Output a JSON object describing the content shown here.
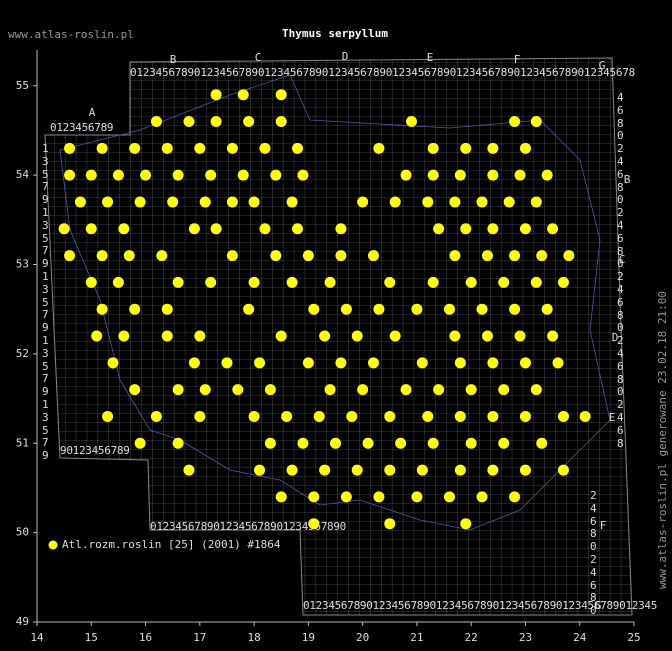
{
  "chart_data": {
    "type": "scatter",
    "title": "Thymus serpyllum",
    "source": "www.atlas-roslin.pl",
    "footer": "www.atlas-roslin.pl generowane 23.02.18 21:00",
    "xlim": [
      14,
      25
    ],
    "ylim": [
      49,
      55.4
    ],
    "xticks": [
      14,
      15,
      16,
      17,
      18,
      19,
      20,
      21,
      22,
      23,
      24,
      25
    ],
    "yticks": [
      49,
      50,
      51,
      52,
      53,
      54,
      55
    ],
    "series": [
      {
        "name": "Atl.rozm.roslin [25] (2001) #1864",
        "color": "#ffff00",
        "x": [
          17.3,
          17.8,
          18.5,
          16.2,
          16.8,
          17.3,
          17.9,
          18.5,
          20.9,
          22.8,
          23.2,
          14.6,
          15.2,
          15.8,
          16.4,
          17.0,
          17.6,
          18.2,
          18.8,
          20.3,
          21.3,
          21.9,
          22.4,
          23.0,
          14.6,
          15.0,
          15.5,
          16.0,
          16.6,
          17.2,
          17.8,
          18.4,
          18.9,
          20.8,
          21.3,
          21.8,
          22.4,
          22.9,
          23.4,
          14.8,
          15.3,
          15.9,
          16.5,
          17.1,
          17.6,
          18.0,
          18.7,
          20.0,
          20.6,
          21.2,
          21.7,
          22.2,
          22.7,
          23.2,
          14.5,
          15.0,
          15.6,
          16.9,
          17.3,
          18.2,
          18.8,
          19.6,
          21.4,
          21.9,
          22.4,
          23.0,
          23.5,
          14.6,
          15.2,
          15.7,
          16.3,
          17.6,
          18.4,
          19.0,
          19.6,
          20.2,
          21.7,
          22.3,
          22.8,
          23.3,
          23.8,
          15.0,
          15.5,
          16.6,
          17.2,
          18.0,
          18.7,
          19.4,
          20.5,
          21.3,
          22.0,
          22.6,
          23.2,
          23.7,
          15.2,
          15.8,
          16.4,
          17.9,
          19.1,
          19.7,
          20.3,
          21.0,
          21.6,
          22.2,
          22.8,
          23.4,
          15.1,
          15.6,
          16.4,
          17.0,
          18.5,
          19.3,
          19.9,
          20.6,
          21.7,
          22.3,
          22.9,
          23.5,
          15.4,
          16.9,
          17.5,
          18.1,
          19.0,
          19.6,
          20.2,
          21.1,
          21.8,
          22.4,
          23.0,
          23.6,
          15.8,
          16.6,
          17.1,
          17.7,
          18.3,
          19.4,
          20.0,
          20.8,
          21.4,
          22.0,
          22.6,
          23.2,
          15.3,
          16.2,
          17.0,
          18.0,
          18.6,
          19.2,
          19.8,
          20.5,
          21.2,
          21.8,
          22.4,
          23.0,
          23.7,
          24.1,
          15.9,
          16.6,
          18.3,
          18.9,
          19.5,
          20.1,
          20.7,
          21.3,
          22.0,
          22.6,
          23.3,
          16.8,
          18.1,
          18.7,
          19.3,
          19.9,
          20.5,
          21.1,
          21.8,
          22.4,
          23.0,
          23.7,
          18.5,
          19.1,
          19.7,
          20.3,
          21.0,
          21.6,
          22.2,
          22.8,
          19.1,
          20.5,
          21.9
        ],
        "values": [
          54.9,
          54.9,
          54.9,
          54.6,
          54.6,
          54.6,
          54.6,
          54.6,
          54.6,
          54.6,
          54.6,
          54.3,
          54.3,
          54.3,
          54.3,
          54.3,
          54.3,
          54.3,
          54.3,
          54.3,
          54.3,
          54.3,
          54.3,
          54.3,
          54.0,
          54.0,
          54.0,
          54.0,
          54.0,
          54.0,
          54.0,
          54.0,
          54.0,
          54.0,
          54.0,
          54.0,
          54.0,
          54.0,
          54.0,
          53.7,
          53.7,
          53.7,
          53.7,
          53.7,
          53.7,
          53.7,
          53.7,
          53.7,
          53.7,
          53.7,
          53.7,
          53.7,
          53.7,
          53.7,
          53.4,
          53.4,
          53.4,
          53.4,
          53.4,
          53.4,
          53.4,
          53.4,
          53.4,
          53.4,
          53.4,
          53.4,
          53.4,
          53.1,
          53.1,
          53.1,
          53.1,
          53.1,
          53.1,
          53.1,
          53.1,
          53.1,
          53.1,
          53.1,
          53.1,
          53.1,
          53.1,
          52.8,
          52.8,
          52.8,
          52.8,
          52.8,
          52.8,
          52.8,
          52.8,
          52.8,
          52.8,
          52.8,
          52.8,
          52.8,
          52.5,
          52.5,
          52.5,
          52.5,
          52.5,
          52.5,
          52.5,
          52.5,
          52.5,
          52.5,
          52.5,
          52.5,
          52.2,
          52.2,
          52.2,
          52.2,
          52.2,
          52.2,
          52.2,
          52.2,
          52.2,
          52.2,
          52.2,
          52.2,
          51.9,
          51.9,
          51.9,
          51.9,
          51.9,
          51.9,
          51.9,
          51.9,
          51.9,
          51.9,
          51.9,
          51.9,
          51.6,
          51.6,
          51.6,
          51.6,
          51.6,
          51.6,
          51.6,
          51.6,
          51.6,
          51.6,
          51.6,
          51.6,
          51.3,
          51.3,
          51.3,
          51.3,
          51.3,
          51.3,
          51.3,
          51.3,
          51.3,
          51.3,
          51.3,
          51.3,
          51.3,
          51.3,
          51.0,
          51.0,
          51.0,
          51.0,
          51.0,
          51.0,
          51.0,
          51.0,
          51.0,
          51.0,
          51.0,
          50.7,
          50.7,
          50.7,
          50.7,
          50.7,
          50.7,
          50.7,
          50.7,
          50.7,
          50.7,
          50.7,
          50.4,
          50.4,
          50.4,
          50.4,
          50.4,
          50.4,
          50.4,
          50.4,
          50.1,
          50.1,
          50.1
        ]
      }
    ]
  },
  "map_grid": {
    "letters_top": [
      "A",
      "B",
      "C",
      "D",
      "E",
      "F",
      "G"
    ],
    "letters_right": [
      "B",
      "C",
      "D",
      "E",
      "F",
      "G"
    ],
    "digit_rows": [
      "0123456789012345678901234567890123456789012345678901234567890123456789012345678",
      "0123456789",
      "90123456789",
      "0123456789012345678901234567890",
      "01234567890123456789012345678901234567890123456789012345"
    ],
    "digit_columns": [
      "1357913579135791357913579",
      "4680246802468024680246802468",
      "2468024680"
    ]
  }
}
